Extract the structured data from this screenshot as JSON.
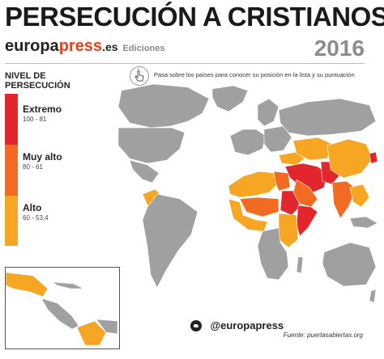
{
  "title": "PERSECUCIÓN A CRISTIANOS",
  "brand": {
    "part1": "europa",
    "part2": "press",
    "part3": ".es",
    "sub": "Ediciones"
  },
  "year": "2016",
  "hint": "Pasa sobre los países para conocer su posición en la lista y su puntuación",
  "legend": {
    "title_line1": "NIVEL DE",
    "title_line2": "PERSECUCIÓN",
    "items": [
      {
        "name": "Extremo",
        "range": "100 - 81",
        "color": "#e3262e"
      },
      {
        "name": "Muy alto",
        "range": "80 - 61",
        "color": "#f26b22"
      },
      {
        "name": "Alto",
        "range": "60 - 53,4",
        "color": "#f6a623"
      }
    ]
  },
  "map_colors": {
    "extreme": "#e3262e",
    "very_high": "#f26b22",
    "high": "#f6a623",
    "other": "#a0a0a0",
    "water": "#ffffff"
  },
  "twitter": "@europapress",
  "source": "Fuente: puertasabiertas.org"
}
